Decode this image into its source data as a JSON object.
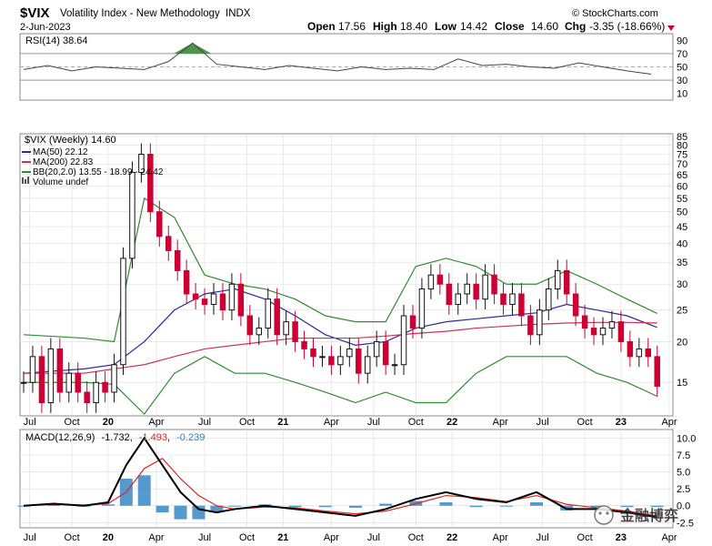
{
  "header": {
    "symbol": "$VIX",
    "name": "Volatility Index - New Methodology",
    "exchange": "INDX",
    "date": "2-Jun-2023",
    "source": "© StockCharts.com",
    "quote": {
      "open_label": "Open",
      "open": "17.56",
      "high_label": "High",
      "high": "18.40",
      "low_label": "Low",
      "low": "14.42",
      "close_label": "Close",
      "close": "14.60",
      "chg_label": "Chg",
      "chg": "-3.35 (-18.66%)"
    }
  },
  "watermark": "金融博弈",
  "colors": {
    "up_candle": "#111111",
    "down_candle": "#cc0033",
    "ma50": "#2b2b9a",
    "ma200": "#cc3355",
    "bb": "#2e8b2e",
    "macd": "#000000",
    "signal": "#dd2222",
    "hist": "#2a7fc1",
    "rsi_fill": "#3a8a3a",
    "grid": "#dcdcdc"
  },
  "chart_data": [
    {
      "type": "line",
      "panel": "rsi",
      "legend": "RSI(14) 38.64",
      "ylim": [
        0,
        100
      ],
      "ticks": [
        "90",
        "70",
        "50",
        "30",
        "10"
      ],
      "tick_values": [
        90,
        70,
        50,
        30,
        10
      ],
      "series": [
        {
          "name": "RSI(14)",
          "x": [
            0,
            8,
            16,
            24,
            32,
            40,
            48,
            56,
            64,
            72,
            80,
            88,
            96,
            104,
            112,
            120,
            128,
            136,
            144,
            152,
            160,
            168,
            176,
            184,
            192,
            200,
            208
          ],
          "values": [
            46,
            52,
            44,
            50,
            48,
            46,
            58,
            86,
            54,
            50,
            46,
            52,
            48,
            44,
            50,
            46,
            48,
            46,
            62,
            52,
            54,
            50,
            48,
            56,
            50,
            44,
            39
          ]
        }
      ]
    },
    {
      "type": "line",
      "panel": "price",
      "legend": [
        "$VIX (Weekly) 14.60",
        "MA(50) 22.12",
        "MA(200) 22.83",
        "BB(20,2.0) 13.55 - 18.99 - 24.42",
        "Volume undef"
      ],
      "yscale": "log",
      "ylim": [
        12,
        85
      ],
      "ticks": [
        "85",
        "80",
        "75",
        "70",
        "65",
        "60",
        "55",
        "50",
        "45",
        "40",
        "35",
        "30",
        "25",
        "20",
        "15"
      ],
      "tick_values": [
        85,
        80,
        75,
        70,
        65,
        60,
        55,
        50,
        45,
        40,
        35,
        30,
        25,
        20,
        15
      ],
      "series": [
        {
          "name": "$VIX",
          "x": [
            0,
            3,
            6,
            9,
            12,
            15,
            18,
            21,
            24,
            27,
            30,
            33,
            36,
            39,
            42,
            45,
            48,
            51,
            54,
            57,
            60,
            63,
            66,
            69,
            72,
            75,
            78,
            81,
            84,
            87,
            90,
            93,
            96,
            99,
            102,
            105,
            108,
            111,
            114,
            117,
            120,
            123,
            126,
            129,
            132,
            135,
            138,
            141,
            144,
            147,
            150,
            153,
            156,
            159,
            162,
            165,
            168,
            171,
            174,
            177,
            180,
            183,
            186,
            189,
            192,
            195,
            198,
            201,
            204,
            207,
            210
          ],
          "values": [
            15,
            18,
            13,
            19,
            14,
            16,
            14,
            13,
            15,
            14,
            17,
            36,
            66,
            75,
            50,
            42,
            38,
            33,
            28,
            27,
            26,
            28,
            25,
            30,
            24,
            21,
            22,
            27,
            21,
            23,
            20,
            19,
            18,
            18,
            17,
            18,
            19,
            16,
            18,
            20,
            17,
            17,
            24,
            22,
            29,
            32,
            30,
            26,
            28,
            30,
            27,
            32,
            28,
            26,
            28,
            24,
            21,
            25,
            29,
            33,
            28,
            24,
            22,
            21,
            22,
            23,
            20,
            18,
            19,
            18,
            14.6
          ]
        },
        {
          "name": "MA(50)",
          "x": [
            0,
            20,
            30,
            40,
            50,
            60,
            70,
            80,
            90,
            100,
            110,
            120,
            130,
            140,
            150,
            160,
            170,
            180,
            190,
            200,
            210
          ],
          "values": [
            16,
            16.5,
            17,
            20,
            25,
            28,
            29,
            27,
            24,
            21,
            19.5,
            20,
            22,
            23,
            23.5,
            24,
            24.5,
            26,
            25,
            24,
            22.1
          ]
        },
        {
          "name": "MA(200)",
          "x": [
            0,
            20,
            30,
            40,
            50,
            60,
            70,
            80,
            90,
            100,
            110,
            120,
            130,
            140,
            150,
            160,
            170,
            180,
            190,
            200,
            210
          ],
          "values": [
            16,
            16,
            16.5,
            17,
            18,
            19,
            19.5,
            20,
            20.5,
            20.5,
            20.5,
            20.8,
            21.2,
            21.5,
            22,
            22.3,
            22.6,
            22.8,
            22.9,
            22.9,
            22.8
          ]
        },
        {
          "name": "BB upper",
          "x": [
            0,
            20,
            30,
            40,
            50,
            60,
            70,
            80,
            90,
            100,
            110,
            120,
            130,
            140,
            150,
            160,
            170,
            180,
            190,
            200,
            210
          ],
          "values": [
            21,
            20.5,
            20,
            55,
            48,
            32,
            30,
            29,
            27,
            24,
            23,
            23,
            34,
            36,
            34,
            30,
            30,
            33,
            30,
            27,
            24.4
          ]
        },
        {
          "name": "BB lower",
          "x": [
            0,
            20,
            30,
            40,
            50,
            60,
            70,
            80,
            90,
            100,
            110,
            120,
            130,
            140,
            150,
            160,
            170,
            180,
            190,
            200,
            210
          ],
          "values": [
            15,
            15,
            14.8,
            12,
            16,
            18,
            16,
            16,
            15,
            14,
            13,
            14,
            13,
            13,
            16,
            18,
            18,
            18,
            16,
            15,
            13.6
          ]
        }
      ]
    },
    {
      "type": "line",
      "panel": "macd",
      "legend": {
        "base": "MACD(12,26,9)",
        "macd": "-1.732",
        "signal": "-1.493",
        "hist": "-0.239"
      },
      "ylim": [
        -3,
        11
      ],
      "ticks": [
        "10.0",
        "7.5",
        "5.0",
        "2.5",
        "0.0",
        "-2.5"
      ],
      "tick_values": [
        10,
        7.5,
        5,
        2.5,
        0,
        -2.5
      ],
      "series": [
        {
          "name": "MACD",
          "x": [
            0,
            10,
            20,
            28,
            34,
            40,
            46,
            52,
            58,
            64,
            70,
            80,
            90,
            100,
            110,
            120,
            130,
            140,
            150,
            160,
            170,
            180,
            190,
            200,
            210
          ],
          "values": [
            0,
            0.3,
            0,
            0.5,
            6,
            10,
            6,
            2,
            -0.5,
            -1,
            -0.5,
            0,
            -0.5,
            -1,
            -1.5,
            -0.5,
            1,
            2,
            1,
            0.5,
            2,
            -0.5,
            -0.5,
            -1,
            -1.7
          ]
        },
        {
          "name": "Signal",
          "x": [
            0,
            10,
            20,
            28,
            34,
            40,
            46,
            52,
            58,
            64,
            70,
            80,
            90,
            100,
            110,
            120,
            130,
            140,
            150,
            160,
            170,
            180,
            190,
            200,
            210
          ],
          "values": [
            0,
            0.2,
            0.1,
            0.3,
            2,
            5.5,
            7,
            4,
            1.5,
            0,
            -0.5,
            -0.2,
            -0.3,
            -0.8,
            -1.2,
            -0.8,
            0.3,
            1.5,
            1.2,
            0.6,
            1.5,
            0.2,
            -0.3,
            -0.8,
            -1.5
          ]
        },
        {
          "name": "Histogram",
          "x": [
            0,
            10,
            20,
            28,
            34,
            40,
            46,
            52,
            58,
            64,
            70,
            80,
            90,
            100,
            110,
            120,
            130,
            140,
            150,
            160,
            170,
            180,
            190,
            200,
            210
          ],
          "values": [
            0,
            0.1,
            -0.1,
            0.2,
            4,
            4.5,
            -1,
            -2,
            -2,
            -1,
            0,
            0.2,
            -0.2,
            -0.2,
            -0.3,
            0.3,
            0.7,
            0.5,
            -0.2,
            -0.1,
            0.5,
            -0.7,
            -0.2,
            -0.2,
            -0.2
          ]
        }
      ]
    }
  ],
  "x_axis": {
    "labels": [
      "Jul",
      "Oct",
      "20",
      "Apr",
      "Jul",
      "Oct",
      "21",
      "Apr",
      "Jul",
      "Oct",
      "22",
      "Apr",
      "Jul",
      "Oct",
      "23",
      "Apr"
    ],
    "x": [
      2,
      16,
      28,
      44,
      60,
      74,
      86,
      102,
      116,
      130,
      142,
      158,
      172,
      186,
      198,
      214
    ],
    "bold": [
      false,
      false,
      true,
      false,
      false,
      false,
      true,
      false,
      false,
      false,
      true,
      false,
      false,
      false,
      true,
      false
    ]
  }
}
